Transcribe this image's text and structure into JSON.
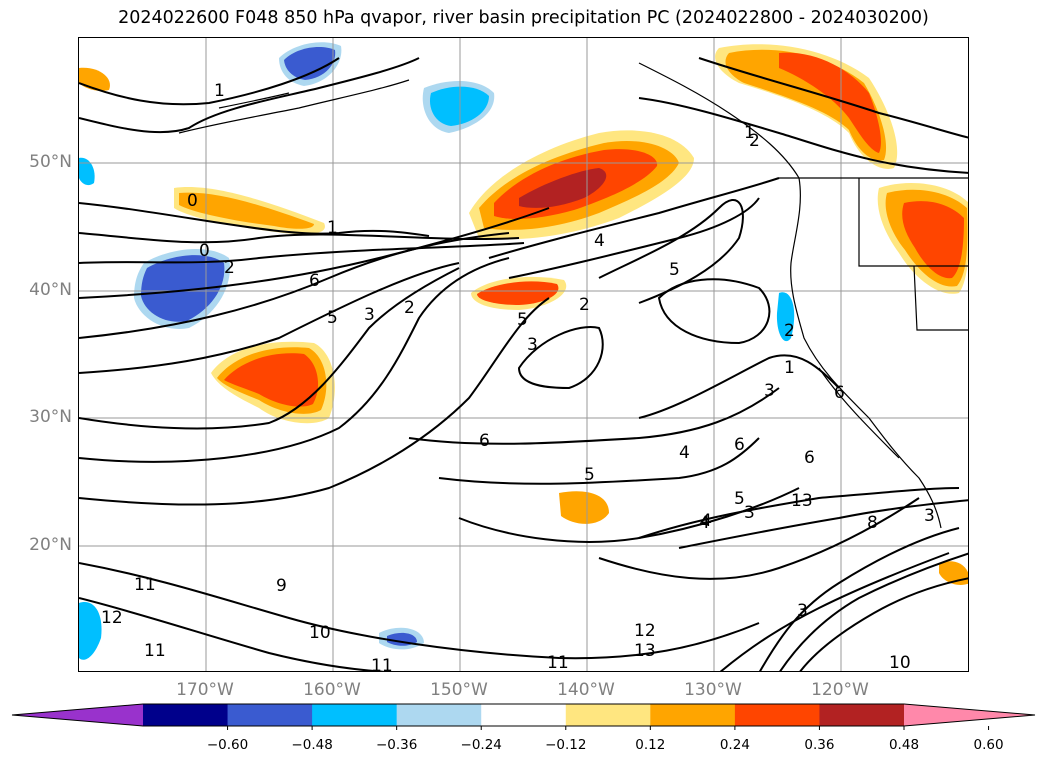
{
  "title": "2024022600 F048 850 hPa qvapor, river basin precipitation PC (2024022800 - 2024030200)",
  "lat_labels": [
    "50°N",
    "40°N",
    "30°N",
    "20°N"
  ],
  "lon_labels": [
    "170°W",
    "160°W",
    "150°W",
    "140°W",
    "130°W",
    "120°W"
  ],
  "colorbar": {
    "ticks": [
      "−0.60",
      "−0.48",
      "−0.36",
      "−0.24",
      "−0.12",
      "0.12",
      "0.24",
      "0.36",
      "0.48",
      "0.60"
    ],
    "colors": [
      "#9932cc",
      "#00008b",
      "#3a5bd0",
      "#00bfff",
      "#add8f0",
      "#ffffff",
      "#ffe680",
      "#ffa500",
      "#ff4500",
      "#b22222",
      "#ff88aa"
    ]
  },
  "contour_labels": [
    "0",
    "1",
    "0",
    "1",
    "2",
    "4",
    "5",
    "4",
    "2",
    "6",
    "1",
    "2",
    "5",
    "3",
    "2",
    "5",
    "3",
    "6",
    "1",
    "3",
    "6",
    "5",
    "4",
    "6",
    "5",
    "3",
    "4",
    "13",
    "8",
    "3",
    "9",
    "11",
    "12",
    "11",
    "10",
    "11",
    "12",
    "13",
    "11",
    "10",
    "3",
    "6",
    "2"
  ]
}
